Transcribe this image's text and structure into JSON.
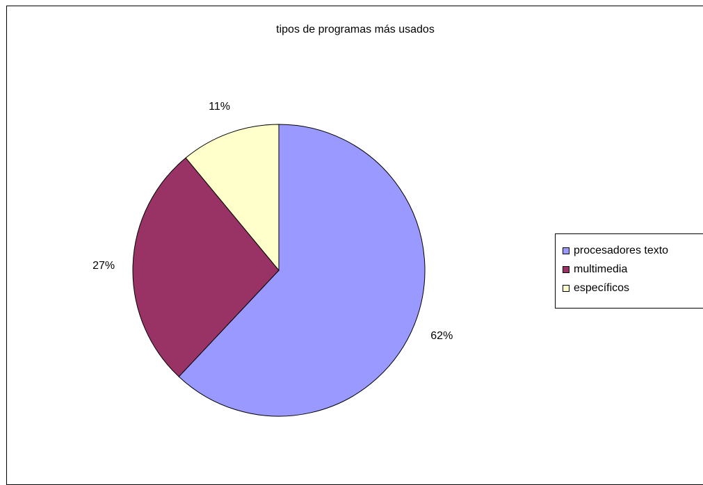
{
  "chart_data": {
    "type": "pie",
    "title": "tipos de programas más usados",
    "categories": [
      "procesadores texto",
      "multimedia",
      "específicos"
    ],
    "values": [
      62,
      27,
      11
    ],
    "value_labels": [
      "62%",
      "27%",
      "11%"
    ],
    "colors": [
      "#9999FF",
      "#993366",
      "#FFFFCC"
    ],
    "legend": "right",
    "start_angle_deg": 0,
    "direction": "clockwise"
  }
}
